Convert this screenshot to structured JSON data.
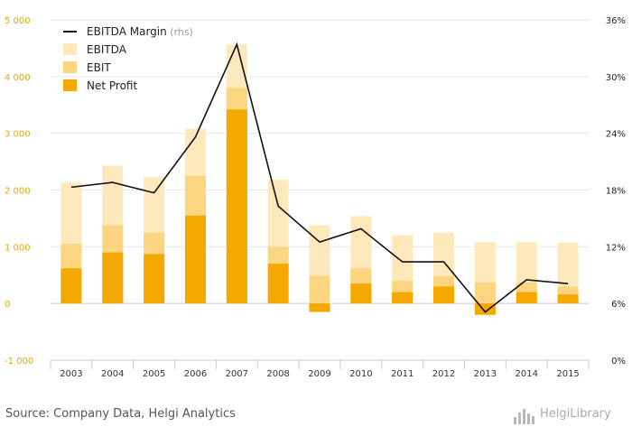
{
  "chart_data": {
    "type": "bar",
    "categories": [
      "2003",
      "2004",
      "2005",
      "2006",
      "2007",
      "2008",
      "2009",
      "2010",
      "2011",
      "2012",
      "2013",
      "2014",
      "2015"
    ],
    "series": [
      {
        "name": "EBITDA",
        "values": [
          2130,
          2430,
          2230,
          3080,
          4560,
          2180,
          1380,
          1540,
          1200,
          1250,
          1080,
          1080,
          1070
        ],
        "color": "#fde9bc"
      },
      {
        "name": "EBIT",
        "values": [
          1050,
          1380,
          1250,
          2250,
          3800,
          1000,
          490,
          620,
          400,
          480,
          370,
          370,
          300
        ],
        "color": "#fbd57f"
      },
      {
        "name": "Net Profit",
        "values": [
          620,
          900,
          870,
          1550,
          3420,
          700,
          -150,
          350,
          200,
          300,
          -200,
          200,
          160
        ],
        "color": "#f5a800"
      }
    ],
    "line_series": {
      "name": "EBITDA Margin",
      "suffix": " (rhs)",
      "values": [
        18.3,
        18.8,
        17.7,
        23.6,
        33.4,
        16.3,
        12.5,
        13.9,
        10.4,
        10.4,
        5.1,
        8.5,
        8.1
      ],
      "color": "#111111"
    },
    "ylim_left": [
      -1000,
      5000
    ],
    "ylim_right": [
      0,
      36
    ],
    "yticks_left": [
      "5 000",
      "4 000",
      "3 000",
      "2 000",
      "1 000",
      "0",
      "-1 000"
    ],
    "yticks_right": [
      "36%",
      "30%",
      "24%",
      "18%",
      "12%",
      "6%",
      "0%"
    ],
    "legend_position": "top-left",
    "grid": true
  },
  "footer": {
    "source": "Source: Company Data, Helgi Analytics",
    "brand": "HelgiLibrary"
  }
}
